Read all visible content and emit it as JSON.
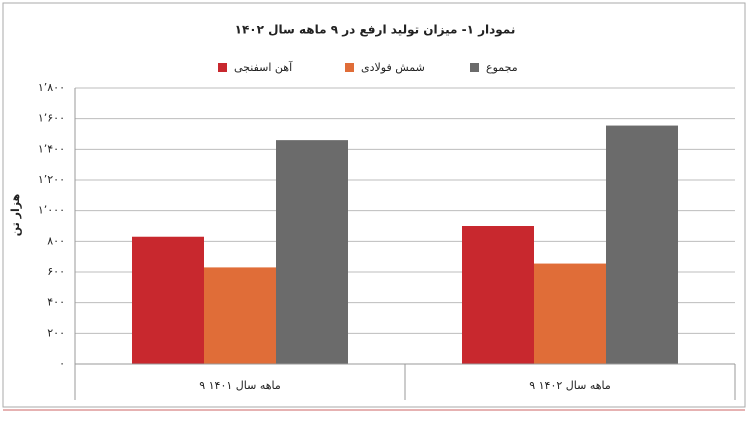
{
  "chart_data": {
    "type": "bar",
    "title": "نمودار ۱- میزان تولید ارفع در ۹ ماهه سال ۱۴۰۲",
    "y_label": "هزار تن",
    "categories": [
      "۹ ماهه سال ۱۴۰۱",
      "۹ ماهه سال ۱۴۰۲"
    ],
    "series": [
      {
        "name": "آهن اسفنجی",
        "color": "#c8282e",
        "values": [
          830,
          900
        ]
      },
      {
        "name": "شمش فولادی",
        "color": "#e06d38",
        "values": [
          630,
          655
        ]
      },
      {
        "name": "مجموع",
        "color": "#6b6b6b",
        "values": [
          1460,
          1555
        ]
      }
    ],
    "ylim": [
      0,
      1800
    ],
    "yticks": [
      {
        "value": 0,
        "label": "۰"
      },
      {
        "value": 200,
        "label": "۲۰۰"
      },
      {
        "value": 400,
        "label": "۴۰۰"
      },
      {
        "value": 600,
        "label": "۶۰۰"
      },
      {
        "value": 800,
        "label": "۸۰۰"
      },
      {
        "value": 1000,
        "label": "۱٬۰۰۰"
      },
      {
        "value": 1200,
        "label": "۱٬۲۰۰"
      },
      {
        "value": 1400,
        "label": "۱٬۴۰۰"
      },
      {
        "value": 1600,
        "label": "۱٬۶۰۰"
      },
      {
        "value": 1800,
        "label": "۱٬۸۰۰"
      }
    ],
    "grid": true
  }
}
